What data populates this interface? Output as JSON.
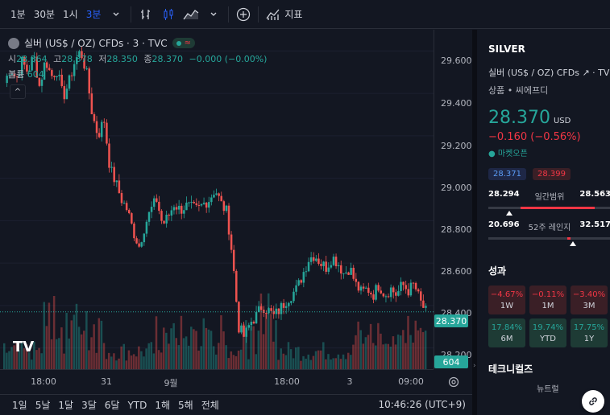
{
  "toolbar": {
    "intervals": [
      "1분",
      "30분",
      "1시",
      "3분"
    ],
    "active_interval": "3분",
    "indicators_label": "지표"
  },
  "legend": {
    "symbol": "실버 (US$ / OZ) CFDs · 3 · TVC",
    "open_label": "시",
    "open": "28.364",
    "high_label": "고",
    "high": "28.378",
    "low_label": "저",
    "low": "28.350",
    "close_label": "종",
    "close": "28.370",
    "change": "−0.000 (−0.00%)",
    "volume_label": "볼륨",
    "volume": "604"
  },
  "yaxis": {
    "ticks": [
      "29.600",
      "29.400",
      "29.200",
      "29.000",
      "28.800",
      "28.600",
      "28.400",
      "28.200"
    ],
    "price_tag": "28.370",
    "volume_tag": "604"
  },
  "xaxis": {
    "ticks": [
      "18:00",
      "31",
      "9월",
      "18:00",
      "3",
      "09:00"
    ]
  },
  "bottom": {
    "ranges": [
      "1일",
      "5날",
      "1달",
      "3달",
      "6달",
      "YTD",
      "1해",
      "5해",
      "전체"
    ],
    "clock": "10:46:26 (UTC+9)"
  },
  "panel": {
    "title": "SILVER",
    "description": "실버 (US$ / OZ) CFDs",
    "exchange": "TVC",
    "category": "상품 • 씨에프디",
    "price": "28.370",
    "currency": "USD",
    "change": "−0.160 (−0.56%)",
    "market_status": "● 마켓오픈",
    "bid": "28.371",
    "ask": "28.399",
    "day_low": "28.294",
    "day_label": "일간범위",
    "day_high": "28.563",
    "day_position": 0.17,
    "wk_low": "20.696",
    "wk_label": "52주 레인지",
    "wk_high": "32.517",
    "wk_position": 0.69,
    "perf_title": "성과",
    "performance": [
      {
        "value": "−4.67%",
        "period": "1W",
        "sign": "neg"
      },
      {
        "value": "−0.11%",
        "period": "1M",
        "sign": "neg"
      },
      {
        "value": "−3.40%",
        "period": "3M",
        "sign": "neg"
      },
      {
        "value": "17.84%",
        "period": "6M",
        "sign": "pos"
      },
      {
        "value": "19.74%",
        "period": "YTD",
        "sign": "pos"
      },
      {
        "value": "17.75%",
        "period": "1Y",
        "sign": "pos"
      }
    ],
    "tech_title": "테크니컬즈",
    "tech_label": "뉴트럴"
  },
  "colors": {
    "up": "#26a69a",
    "down": "#ef5350",
    "accent": "#2962ff",
    "background": "#131722"
  },
  "chart_data": {
    "type": "candlestick",
    "price_range": [
      28.1,
      29.7
    ],
    "last_price": 28.37,
    "close_path": [
      29.45,
      29.52,
      29.47,
      29.55,
      29.5,
      29.58,
      29.43,
      29.56,
      29.48,
      29.51,
      29.38,
      29.45,
      29.55,
      29.6,
      29.5,
      29.3,
      29.2,
      29.28,
      29.05,
      28.98,
      28.9,
      28.85,
      28.75,
      28.68,
      28.78,
      28.85,
      28.9,
      28.78,
      28.82,
      28.88,
      28.85,
      28.87,
      28.86,
      28.85,
      28.88,
      28.9,
      28.95,
      28.88,
      28.84,
      28.62,
      28.3,
      28.25,
      28.32,
      28.35,
      28.4,
      28.38,
      28.35,
      28.38,
      28.42,
      28.45,
      28.48,
      28.55,
      28.62,
      28.64,
      28.6,
      28.58,
      28.63,
      28.6,
      28.55,
      28.58,
      28.5,
      28.46,
      28.48,
      28.45,
      28.5,
      28.45,
      28.48,
      28.45,
      28.5,
      28.47,
      28.5,
      28.42,
      28.37
    ]
  },
  "tv_logo": "TV"
}
